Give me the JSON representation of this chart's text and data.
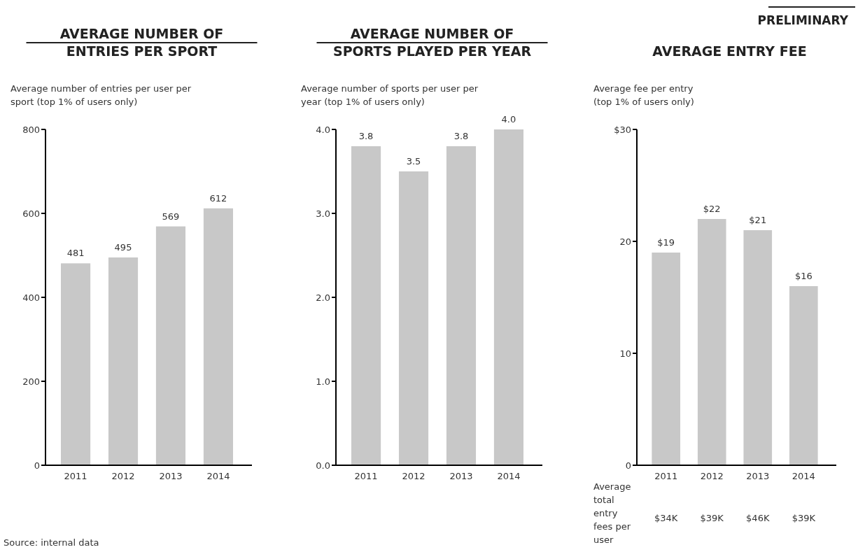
{
  "chart_data": [
    {
      "type": "bar",
      "title": "AVERAGE NUMBER OF\nENTRIES PER SPORT",
      "subtitle": "Average number of entries per user per\nsport (top 1% of users only)",
      "categories": [
        "2011",
        "2012",
        "2013",
        "2014"
      ],
      "values": [
        481,
        495,
        569,
        612
      ],
      "color": "#c8c8c8",
      "ylim": [
        0,
        800
      ],
      "yticks": [
        0,
        200,
        400,
        600,
        800
      ],
      "data_labels": true,
      "annotations": [
        "Source: internal data"
      ]
    },
    {
      "type": "bar",
      "title": "AVERAGE NUMBER OF\nSPORTS PLAYED PER YEAR",
      "subtitle": "Average number of sports per user per\nyear (top 1% of users only)",
      "categories": [
        "2011",
        "2012",
        "2013",
        "2014"
      ],
      "values": [
        3.8,
        3.5,
        3.8,
        4.0
      ],
      "value_labels": [
        "3.8",
        "3.5",
        "3.8",
        "4.0"
      ],
      "color": "#c8c8c8",
      "ylim": [
        0,
        4
      ],
      "yticks": [
        {
          "value": 0,
          "label": "0.0"
        },
        {
          "value": 1,
          "label": "1.0"
        },
        {
          "value": 2,
          "label": "2.0"
        },
        {
          "value": 3,
          "label": "3.0"
        },
        {
          "value": 4,
          "label": "4.0"
        }
      ]
    },
    {
      "type": "bar",
      "title": "AVERAGE ENTRY FEE",
      "subtitle": "Average fee per entry\n(top 1% of users only)",
      "categories": [
        "2011",
        "2012",
        "2013",
        "2014"
      ],
      "values": [
        19,
        22,
        21,
        16
      ],
      "value_labels": [
        "$19",
        "$22",
        "$21",
        "$16"
      ],
      "color": "#c8c8c8",
      "ylim": [
        0,
        30
      ],
      "yticks": [
        0,
        10,
        20,
        {
          "value": 30,
          "label": "$30"
        }
      ],
      "annotations": [
        "PRELIMINARY",
        "Average\ntotal\nentry\nfees per\nuser",
        "$34K",
        "$39K",
        "$46K",
        "$39K"
      ]
    }
  ]
}
